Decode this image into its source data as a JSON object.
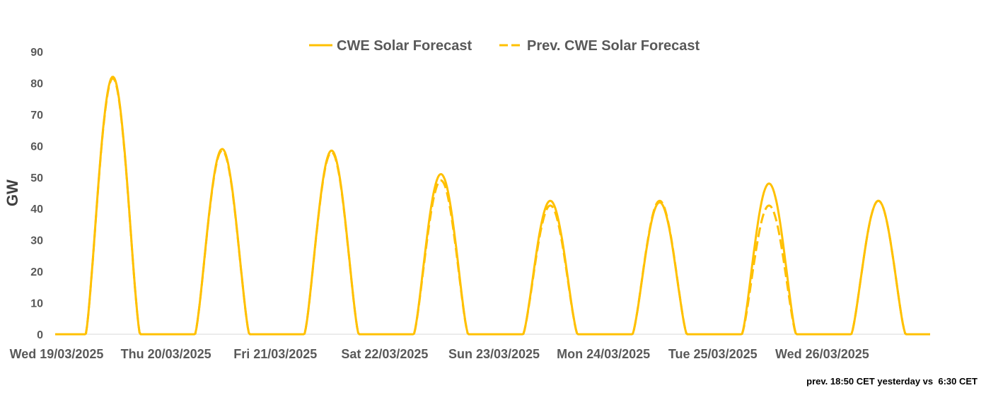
{
  "chart_data": {
    "type": "line",
    "title": "",
    "xlabel": "",
    "ylabel": "GW",
    "ylim": [
      0,
      90
    ],
    "yticks": [
      "0",
      "10",
      "20",
      "30",
      "40",
      "50",
      "60",
      "70",
      "80",
      "90"
    ],
    "categories": [
      "Wed 19/03/2025",
      "Thu 20/03/2025",
      "Fri 21/03/2025",
      "Sat 22/03/2025",
      "Sun 23/03/2025",
      "Mon 24/03/2025",
      "Tue 25/03/2025",
      "Wed 26/03/2025"
    ],
    "legend_position": "top",
    "color": "#FFC000",
    "series": [
      {
        "name": "CWE Solar Forecast",
        "style": "solid",
        "daily_peaks": [
          82,
          59,
          58.5,
          51,
          42.5,
          42,
          48,
          42.5
        ]
      },
      {
        "name": "Prev. CWE Solar Forecast",
        "style": "dashed",
        "daily_peaks": [
          81.5,
          58.5,
          58,
          49,
          41,
          42.5,
          41,
          42.5
        ]
      }
    ],
    "daylight_hours": {
      "start": 6.7,
      "end": 18.6
    }
  },
  "footnote": "prev. 18:50 CET yesterday vs  6:30 CET"
}
